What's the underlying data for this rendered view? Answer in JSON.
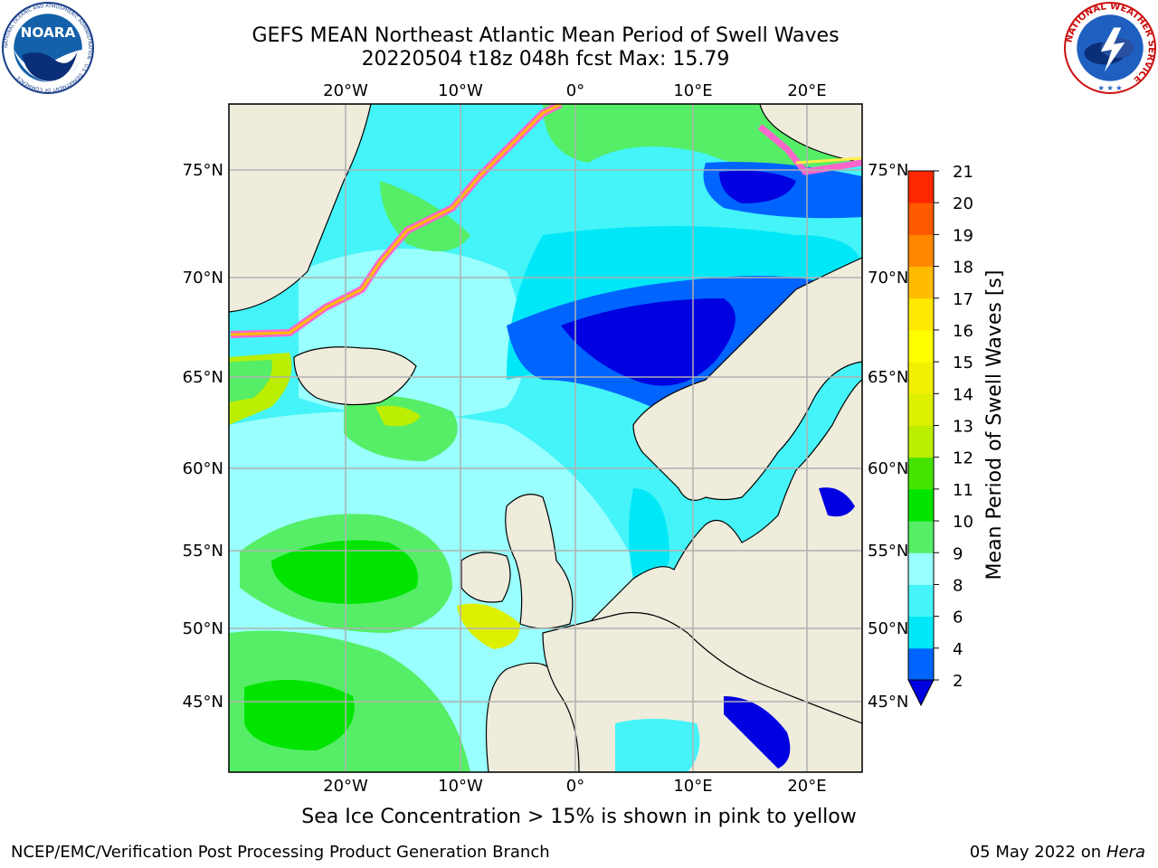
{
  "header": {
    "title_line1": "GEFS MEAN Northeast Atlantic Mean Period of Swell Waves",
    "title_line2": "20220504 t18z 048h fcst   Max: 15.79"
  },
  "logos": {
    "left": {
      "name": "NOARA",
      "ring_text": "NATIONAL OCEANIC AND ATMOSPHERIC ADMINISTRATION · U.S. DEPARTMENT OF COMMERCE"
    },
    "right": {
      "ring_text": "NATIONAL WEATHER SERVICE"
    }
  },
  "map": {
    "lon_labels": [
      "20°W",
      "10°W",
      "0°",
      "10°E",
      "20°E"
    ],
    "lat_labels": [
      "75°N",
      "70°N",
      "65°N",
      "60°N",
      "55°N",
      "50°N",
      "45°N"
    ],
    "colors": {
      "ocean_green": "#55ee66",
      "ocean_cyan": "#00e8f8",
      "ocean_light": "#99ffff",
      "ocean_blue": "#0064ff",
      "ocean_dark": "#0000e0",
      "land": "#efecdc",
      "grid": "#b0b0b0"
    }
  },
  "colorbar": {
    "label": "Mean Period of Swell Waves [s]",
    "ticks": [
      "2",
      "4",
      "6",
      "8",
      "9",
      "10",
      "11",
      "12",
      "13",
      "14",
      "15",
      "16",
      "17",
      "18",
      "19",
      "20",
      "21"
    ],
    "colors": [
      "#0064ff",
      "#00e8f8",
      "#44f4f8",
      "#99ffff",
      "#55ee66",
      "#00e400",
      "#44e400",
      "#bbee00",
      "#ddf000",
      "#f0f000",
      "#ffff00",
      "#ffe800",
      "#ffbb00",
      "#ff8800",
      "#ff5a00",
      "#ff2800"
    ],
    "extend_color": "#0000e0"
  },
  "footer": {
    "ice_note": "Sea Ice Concentration > 15% is shown in pink to yellow",
    "credit": "NCEP/EMC/Verification Post Processing Product Generation Branch",
    "date": "05 May 2022 on",
    "machine": "Hera"
  }
}
